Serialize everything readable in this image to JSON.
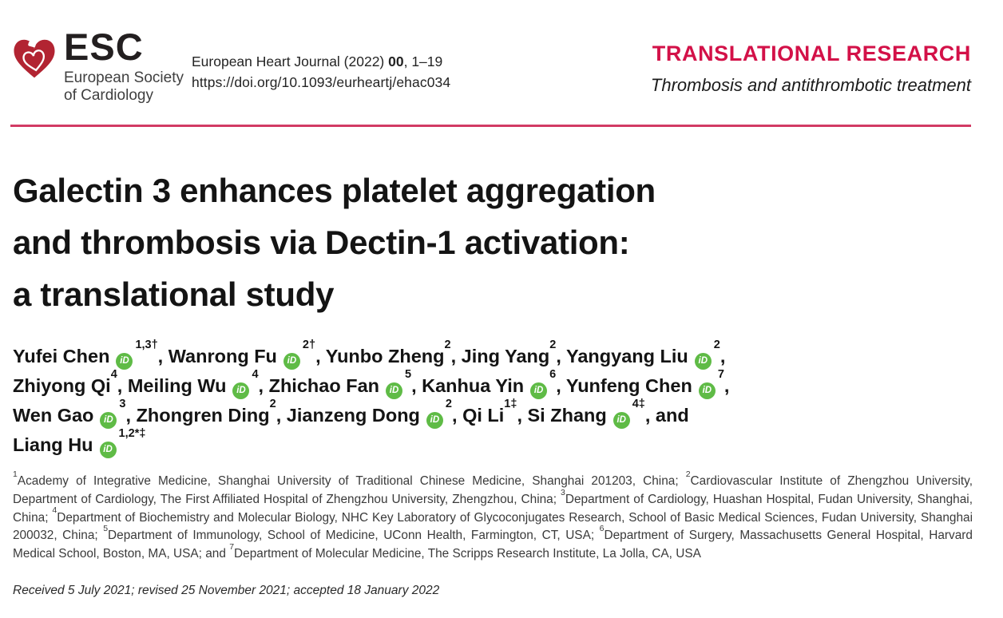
{
  "logo": {
    "acronym": "ESC",
    "org_line1": "European Society",
    "org_line2": "of Cardiology"
  },
  "journal": {
    "citation_prefix": "European Heart Journal (2022) ",
    "citation_volume": "00",
    "citation_pages": ", 1–19",
    "doi": "https://doi.org/10.1093/eurheartj/ehac034"
  },
  "section": {
    "title": "TRANSLATIONAL RESEARCH",
    "subtitle": "Thrombosis and antithrombotic treatment"
  },
  "article": {
    "title_lines": [
      "Galectin 3 enhances platelet aggregation",
      "and thrombosis via Dectin-1 activation:",
      "a translational study"
    ],
    "history": "Received 5 July 2021; revised 25 November 2021; accepted 18 January 2022"
  },
  "authors": {
    "orcid_label": "iD",
    "lines": [
      [
        {
          "name": "Yufei Chen",
          "orcid": true,
          "sup": "1,3†",
          "tail": ", "
        },
        {
          "name": "Wanrong Fu",
          "orcid": true,
          "sup": "2†",
          "tail": ", "
        },
        {
          "name": "Yunbo Zheng",
          "orcid": false,
          "sup": "2",
          "tail": ", "
        },
        {
          "name": "Jing Yang",
          "orcid": false,
          "sup": "2",
          "tail": ", "
        },
        {
          "name": "Yangyang Liu",
          "orcid": true,
          "sup": "2",
          "tail": ","
        }
      ],
      [
        {
          "name": "Zhiyong Qi",
          "orcid": false,
          "sup": "4",
          "tail": ", "
        },
        {
          "name": "Meiling Wu",
          "orcid": true,
          "sup": "4",
          "tail": ", "
        },
        {
          "name": "Zhichao Fan",
          "orcid": true,
          "sup": "5",
          "tail": ", "
        },
        {
          "name": "Kanhua Yin",
          "orcid": true,
          "sup": "6",
          "tail": ", "
        },
        {
          "name": "Yunfeng Chen",
          "orcid": true,
          "sup": "7",
          "tail": ","
        }
      ],
      [
        {
          "name": "Wen Gao",
          "orcid": true,
          "sup": "3",
          "tail": ", "
        },
        {
          "name": "Zhongren Ding",
          "orcid": false,
          "sup": "2",
          "tail": ", "
        },
        {
          "name": "Jianzeng Dong",
          "orcid": true,
          "sup": "2",
          "tail": ", "
        },
        {
          "name": "Qi Li",
          "orcid": false,
          "sup": "1‡",
          "tail": ", "
        },
        {
          "name": "Si Zhang",
          "orcid": true,
          "sup": "4‡",
          "tail": ", and"
        }
      ],
      [
        {
          "name": "Liang Hu",
          "orcid": true,
          "sup": "1,2*‡",
          "tail": ""
        }
      ]
    ]
  },
  "affiliations": [
    {
      "sup": "1",
      "text": "Academy of Integrative Medicine, Shanghai University of Traditional Chinese Medicine, Shanghai 201203, China; "
    },
    {
      "sup": "2",
      "text": "Cardiovascular Institute of Zhengzhou University, Department of Cardiology, The First Affiliated Hospital of Zhengzhou University, Zhengzhou, China; "
    },
    {
      "sup": "3",
      "text": "Department of Cardiology, Huashan Hospital, Fudan University, Shanghai, China; "
    },
    {
      "sup": "4",
      "text": "Department of Biochemistry and Molecular Biology, NHC Key Laboratory of Glycoconjugates Research, School of Basic Medical Sciences, Fudan University, Shanghai 200032, China; "
    },
    {
      "sup": "5",
      "text": "Department of Immunology, School of Medicine, UConn Health, Farmington, CT, USA; "
    },
    {
      "sup": "6",
      "text": "Department of Surgery, Massachusetts General Hospital, Harvard Medical School, Boston, MA, USA; and "
    },
    {
      "sup": "7",
      "text": "Department of Molecular Medicine, The Scripps Research Institute, La Jolla, CA, USA"
    }
  ],
  "colors": {
    "accent_red": "#d31148",
    "rule_red": "#d23b64",
    "logo_red": "#b22432",
    "orcid_green": "#5fbb46"
  }
}
